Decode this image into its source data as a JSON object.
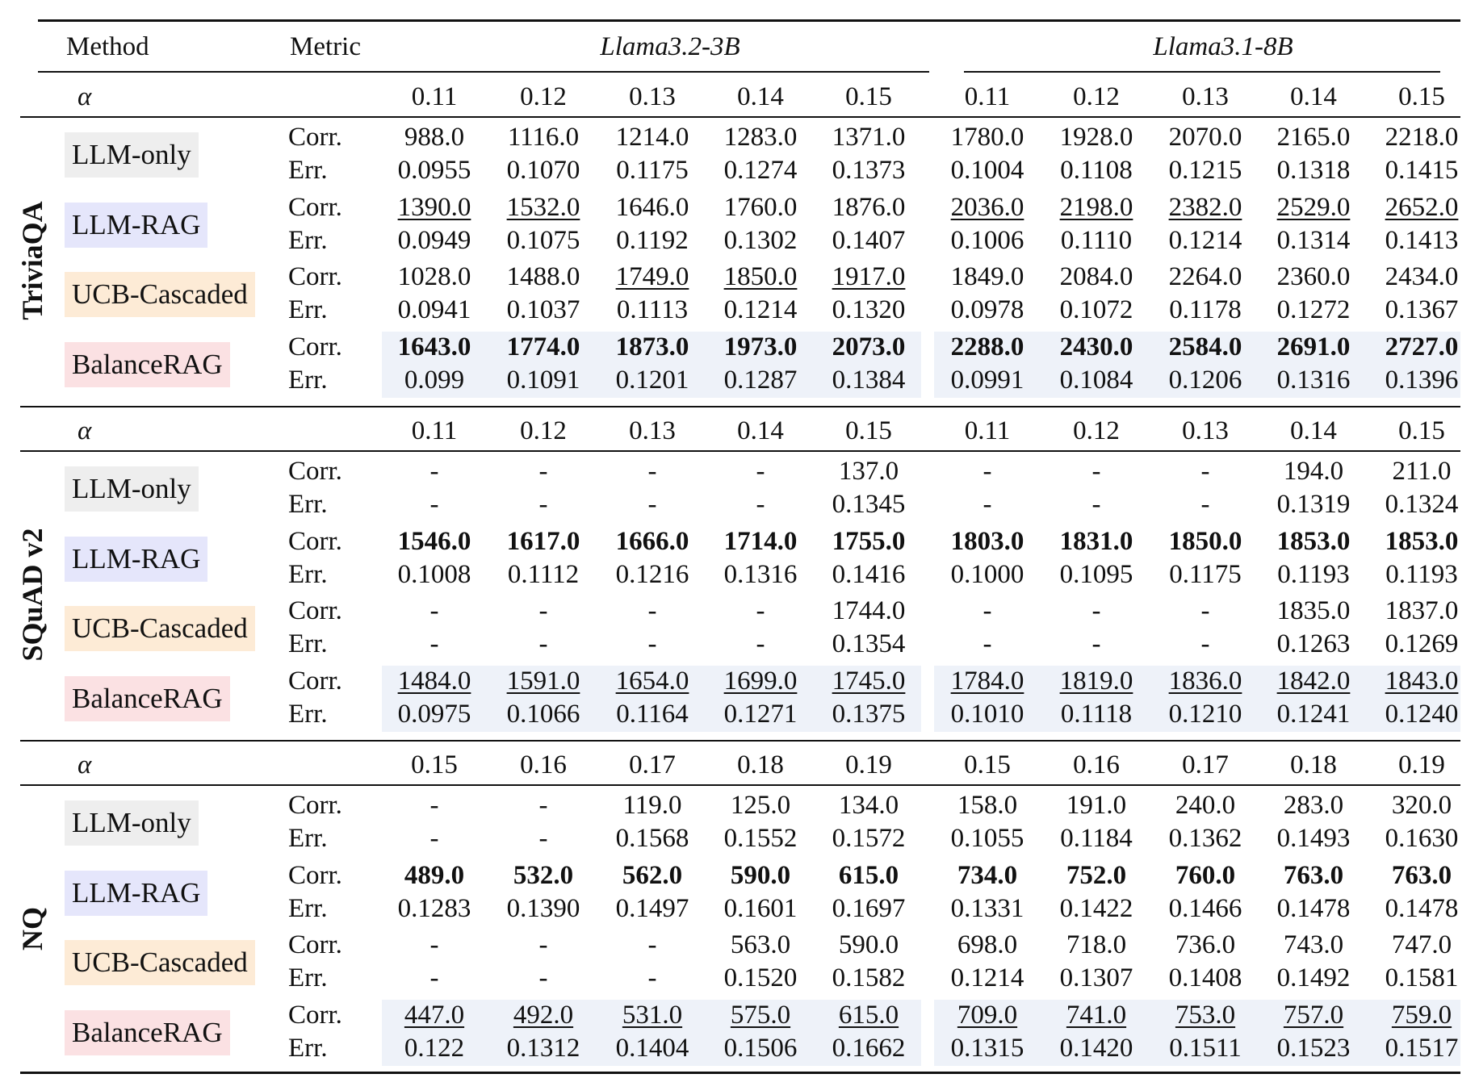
{
  "header": {
    "method_label": "Method",
    "metric_label": "Metric",
    "models": [
      "Llama3.2-3B",
      "Llama3.1-8B"
    ]
  },
  "alpha_symbol": "α",
  "metric_labels": {
    "corr": "Corr.",
    "err": "Err."
  },
  "colors": {
    "llm_only": "#eeeeee",
    "llm_rag": "#e5e6fb",
    "ucb_cascaded": "#fdebd6",
    "balancerag": "#fbe1e3",
    "row_highlight": "#eef2f9"
  },
  "datasets": [
    {
      "name": "TriviaQA",
      "alphas": [
        "0.11",
        "0.12",
        "0.13",
        "0.14",
        "0.15",
        "0.11",
        "0.12",
        "0.13",
        "0.14",
        "0.15"
      ],
      "methods": [
        {
          "name": "LLM-only",
          "key": "llm-only",
          "shaded": false,
          "corr": [
            "988.0",
            "1116.0",
            "1214.0",
            "1283.0",
            "1371.0",
            "1780.0",
            "1928.0",
            "2070.0",
            "2165.0",
            "2218.0"
          ],
          "err": [
            "0.0955",
            "0.1070",
            "0.1175",
            "0.1274",
            "0.1373",
            "0.1004",
            "0.1108",
            "0.1215",
            "0.1318",
            "0.1415"
          ],
          "corr_style": [
            "",
            "",
            "",
            "",
            "",
            "",
            "",
            "",
            "",
            ""
          ]
        },
        {
          "name": "LLM-RAG",
          "key": "llm-rag",
          "shaded": false,
          "corr": [
            "1390.0",
            "1532.0",
            "1646.0",
            "1760.0",
            "1876.0",
            "2036.0",
            "2198.0",
            "2382.0",
            "2529.0",
            "2652.0"
          ],
          "err": [
            "0.0949",
            "0.1075",
            "0.1192",
            "0.1302",
            "0.1407",
            "0.1006",
            "0.1110",
            "0.1214",
            "0.1314",
            "0.1413"
          ],
          "corr_style": [
            "u",
            "u",
            "",
            "",
            "",
            "u",
            "u",
            "u",
            "u",
            "u"
          ]
        },
        {
          "name": "UCB-Cascaded",
          "key": "ucb-cascaded",
          "shaded": false,
          "corr": [
            "1028.0",
            "1488.0",
            "1749.0",
            "1850.0",
            "1917.0",
            "1849.0",
            "2084.0",
            "2264.0",
            "2360.0",
            "2434.0"
          ],
          "err": [
            "0.0941",
            "0.1037",
            "0.1113",
            "0.1214",
            "0.1320",
            "0.0978",
            "0.1072",
            "0.1178",
            "0.1272",
            "0.1367"
          ],
          "corr_style": [
            "",
            "",
            "u",
            "u",
            "u",
            "",
            "",
            "",
            "",
            ""
          ]
        },
        {
          "name": "BalanceRAG",
          "key": "balancerag",
          "shaded": true,
          "corr": [
            "1643.0",
            "1774.0",
            "1873.0",
            "1973.0",
            "2073.0",
            "2288.0",
            "2430.0",
            "2584.0",
            "2691.0",
            "2727.0"
          ],
          "err": [
            "0.099",
            "0.1091",
            "0.1201",
            "0.1287",
            "0.1384",
            "0.0991",
            "0.1084",
            "0.1206",
            "0.1316",
            "0.1396"
          ],
          "corr_style": [
            "b",
            "b",
            "b",
            "b",
            "b",
            "b",
            "b",
            "b",
            "b",
            "b"
          ]
        }
      ]
    },
    {
      "name": "SQuAD v2",
      "alphas": [
        "0.11",
        "0.12",
        "0.13",
        "0.14",
        "0.15",
        "0.11",
        "0.12",
        "0.13",
        "0.14",
        "0.15"
      ],
      "methods": [
        {
          "name": "LLM-only",
          "key": "llm-only",
          "shaded": false,
          "corr": [
            "-",
            "-",
            "-",
            "-",
            "137.0",
            "-",
            "-",
            "-",
            "194.0",
            "211.0"
          ],
          "err": [
            "-",
            "-",
            "-",
            "-",
            "0.1345",
            "-",
            "-",
            "-",
            "0.1319",
            "0.1324"
          ],
          "corr_style": [
            "",
            "",
            "",
            "",
            "",
            "",
            "",
            "",
            "",
            ""
          ]
        },
        {
          "name": "LLM-RAG",
          "key": "llm-rag",
          "shaded": false,
          "corr": [
            "1546.0",
            "1617.0",
            "1666.0",
            "1714.0",
            "1755.0",
            "1803.0",
            "1831.0",
            "1850.0",
            "1853.0",
            "1853.0"
          ],
          "err": [
            "0.1008",
            "0.1112",
            "0.1216",
            "0.1316",
            "0.1416",
            "0.1000",
            "0.1095",
            "0.1175",
            "0.1193",
            "0.1193"
          ],
          "corr_style": [
            "b",
            "b",
            "b",
            "b",
            "b",
            "b",
            "b",
            "b",
            "b",
            "b"
          ]
        },
        {
          "name": "UCB-Cascaded",
          "key": "ucb-cascaded",
          "shaded": false,
          "corr": [
            "-",
            "-",
            "-",
            "-",
            "1744.0",
            "-",
            "-",
            "-",
            "1835.0",
            "1837.0"
          ],
          "err": [
            "-",
            "-",
            "-",
            "-",
            "0.1354",
            "-",
            "-",
            "-",
            "0.1263",
            "0.1269"
          ],
          "corr_style": [
            "",
            "",
            "",
            "",
            "",
            "",
            "",
            "",
            "",
            ""
          ]
        },
        {
          "name": "BalanceRAG",
          "key": "balancerag",
          "shaded": true,
          "corr": [
            "1484.0",
            "1591.0",
            "1654.0",
            "1699.0",
            "1745.0",
            "1784.0",
            "1819.0",
            "1836.0",
            "1842.0",
            "1843.0"
          ],
          "err": [
            "0.0975",
            "0.1066",
            "0.1164",
            "0.1271",
            "0.1375",
            "0.1010",
            "0.1118",
            "0.1210",
            "0.1241",
            "0.1240"
          ],
          "corr_style": [
            "u",
            "u",
            "u",
            "u",
            "u",
            "u",
            "u",
            "u",
            "u",
            "u"
          ]
        }
      ]
    },
    {
      "name": "NQ",
      "alphas": [
        "0.15",
        "0.16",
        "0.17",
        "0.18",
        "0.19",
        "0.15",
        "0.16",
        "0.17",
        "0.18",
        "0.19"
      ],
      "methods": [
        {
          "name": "LLM-only",
          "key": "llm-only",
          "shaded": false,
          "corr": [
            "-",
            "-",
            "119.0",
            "125.0",
            "134.0",
            "158.0",
            "191.0",
            "240.0",
            "283.0",
            "320.0"
          ],
          "err": [
            "-",
            "-",
            "0.1568",
            "0.1552",
            "0.1572",
            "0.1055",
            "0.1184",
            "0.1362",
            "0.1493",
            "0.1630"
          ],
          "corr_style": [
            "",
            "",
            "",
            "",
            "",
            "",
            "",
            "",
            "",
            ""
          ]
        },
        {
          "name": "LLM-RAG",
          "key": "llm-rag",
          "shaded": false,
          "corr": [
            "489.0",
            "532.0",
            "562.0",
            "590.0",
            "615.0",
            "734.0",
            "752.0",
            "760.0",
            "763.0",
            "763.0"
          ],
          "err": [
            "0.1283",
            "0.1390",
            "0.1497",
            "0.1601",
            "0.1697",
            "0.1331",
            "0.1422",
            "0.1466",
            "0.1478",
            "0.1478"
          ],
          "corr_style": [
            "b",
            "b",
            "b",
            "b",
            "b",
            "b",
            "b",
            "b",
            "b",
            "b"
          ]
        },
        {
          "name": "UCB-Cascaded",
          "key": "ucb-cascaded",
          "shaded": false,
          "corr": [
            "-",
            "-",
            "-",
            "563.0",
            "590.0",
            "698.0",
            "718.0",
            "736.0",
            "743.0",
            "747.0"
          ],
          "err": [
            "-",
            "-",
            "-",
            "0.1520",
            "0.1582",
            "0.1214",
            "0.1307",
            "0.1408",
            "0.1492",
            "0.1581"
          ],
          "corr_style": [
            "",
            "",
            "",
            "",
            "",
            "",
            "",
            "",
            "",
            ""
          ]
        },
        {
          "name": "BalanceRAG",
          "key": "balancerag",
          "shaded": true,
          "corr": [
            "447.0",
            "492.0",
            "531.0",
            "575.0",
            "615.0",
            "709.0",
            "741.0",
            "753.0",
            "757.0",
            "759.0"
          ],
          "err": [
            "0.122",
            "0.1312",
            "0.1404",
            "0.1506",
            "0.1662",
            "0.1315",
            "0.1420",
            "0.1511",
            "0.1523",
            "0.1517"
          ],
          "corr_style": [
            "u",
            "u",
            "u",
            "u",
            "u",
            "u",
            "u",
            "u",
            "u",
            "u"
          ]
        }
      ]
    }
  ]
}
